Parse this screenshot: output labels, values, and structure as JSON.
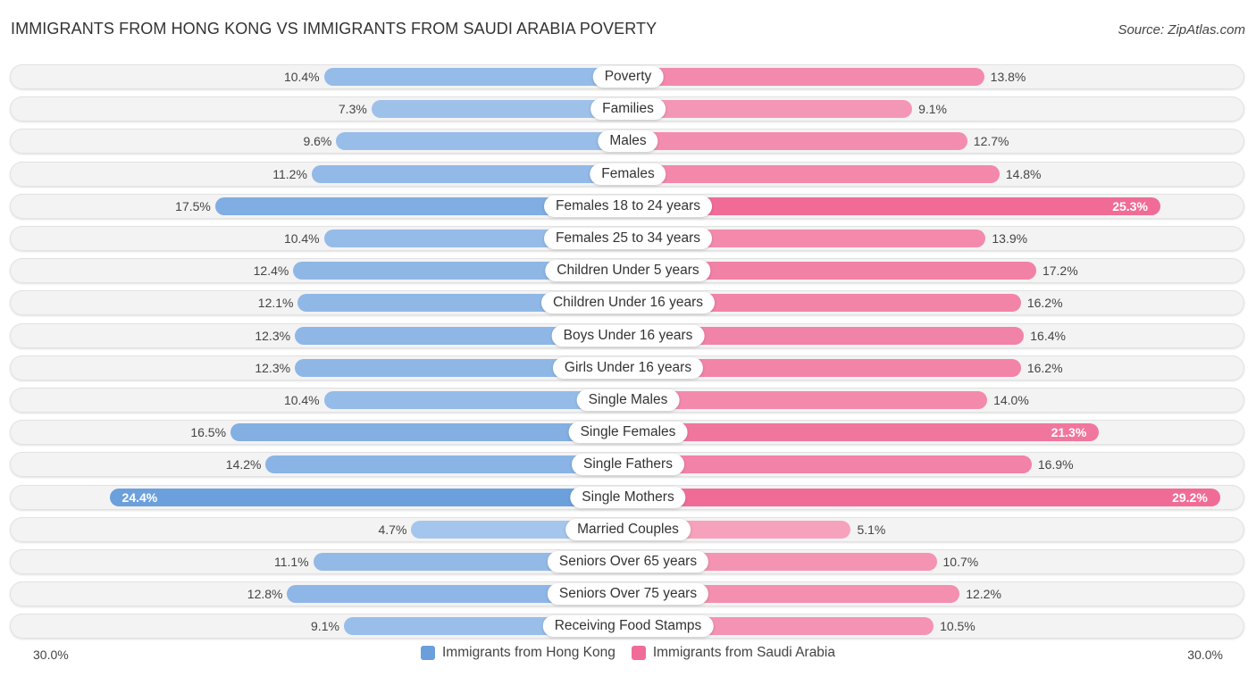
{
  "title": "IMMIGRANTS FROM HONG KONG VS IMMIGRANTS FROM SAUDI ARABIA POVERTY",
  "source": "Source: ZipAtlas.com",
  "colors": {
    "left": "#6a9fdc",
    "right": "#f06c97"
  },
  "chart_data": {
    "type": "bar",
    "orientation": "horizontal-diverging",
    "title": "IMMIGRANTS FROM HONG KONG VS IMMIGRANTS FROM SAUDI ARABIA POVERTY",
    "categories": [
      "Poverty",
      "Families",
      "Males",
      "Females",
      "Females 18 to 24 years",
      "Females 25 to 34 years",
      "Children Under 5 years",
      "Children Under 16 years",
      "Boys Under 16 years",
      "Girls Under 16 years",
      "Single Males",
      "Single Females",
      "Single Fathers",
      "Single Mothers",
      "Married Couples",
      "Seniors Over 65 years",
      "Seniors Over 75 years",
      "Receiving Food Stamps"
    ],
    "series": [
      {
        "name": "Immigrants from Hong Kong",
        "side": "left",
        "values": [
          10.4,
          7.3,
          9.6,
          11.2,
          17.5,
          10.4,
          12.4,
          12.1,
          12.3,
          12.3,
          10.4,
          16.5,
          14.2,
          24.4,
          4.7,
          11.1,
          12.8,
          9.1
        ]
      },
      {
        "name": "Immigrants from Saudi Arabia",
        "side": "right",
        "values": [
          13.8,
          9.1,
          12.7,
          14.8,
          25.3,
          13.9,
          17.2,
          16.2,
          16.4,
          16.2,
          14.0,
          21.3,
          16.9,
          29.2,
          5.1,
          10.7,
          12.2,
          10.5
        ]
      }
    ],
    "unit": "%",
    "xlim": [
      0,
      30
    ],
    "axis_labels": {
      "left": "30.0%",
      "right": "30.0%"
    },
    "legend_position": "bottom-center"
  }
}
